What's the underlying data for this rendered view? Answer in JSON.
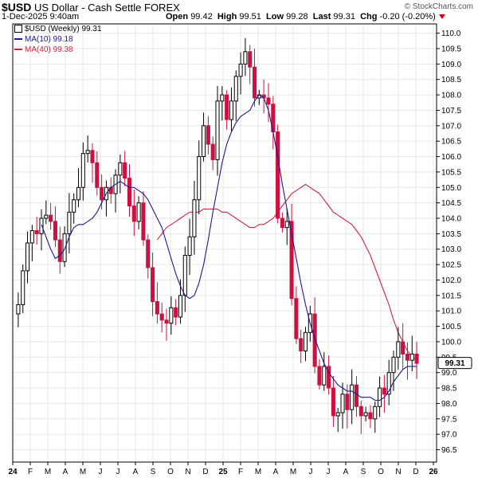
{
  "header": {
    "symbol": "$USD",
    "name": "US Dollar - Cash Settle",
    "exchange": "FOREX",
    "datetime": "1-Dec-2025 9:40am",
    "brand": "© StockCharts.com",
    "quote": {
      "open_label": "Open",
      "open": "99.42",
      "high_label": "High",
      "high": "99.51",
      "low_label": "Low",
      "low": "99.28",
      "last_label": "Last",
      "last": "99.31",
      "chg_label": "Chg",
      "chg": "-0.20 (-0.20%)"
    }
  },
  "legend": {
    "price": "$USD (Weekly) 99.31",
    "ma10": "MA(10) 99.18",
    "ma40": "MA(40) 99.38"
  },
  "colors": {
    "up": "#000000",
    "down": "#cc1140",
    "ma10": "#1a1a8c",
    "ma40": "#d0243c",
    "grid": "#e6e6e6"
  },
  "chart_data": {
    "type": "candlestick",
    "timeframe": "weekly",
    "ylim": [
      96.1,
      110.3
    ],
    "y_ticks": [
      "96.5",
      "97.0",
      "97.5",
      "98.0",
      "98.5",
      "99.0",
      "99.5",
      "100.0",
      "100.5",
      "101.0",
      "101.5",
      "102.0",
      "102.5",
      "103.0",
      "103.5",
      "104.0",
      "104.5",
      "105.0",
      "105.5",
      "106.0",
      "106.5",
      "107.0",
      "107.5",
      "108.0",
      "108.5",
      "109.0",
      "109.5",
      "110.0"
    ],
    "x_ticks": [
      "24",
      "F",
      "M",
      "A",
      "M",
      "J",
      "J",
      "A",
      "S",
      "O",
      "N",
      "D",
      "25",
      "F",
      "M",
      "A",
      "M",
      "J",
      "J",
      "A",
      "S",
      "O",
      "N",
      "D",
      "26"
    ],
    "last_price_label": "99.31",
    "closes": [
      101.2,
      102.3,
      103.2,
      103.6,
      103.5,
      104.0,
      104.1,
      103.9,
      103.3,
      102.6,
      103.5,
      104.2,
      104.6,
      105.0,
      106.1,
      106.2,
      105.8,
      105.0,
      104.6,
      105.0,
      104.8,
      105.4,
      105.8,
      105.3,
      104.4,
      103.9,
      104.5,
      103.3,
      102.4,
      101.3,
      100.9,
      100.7,
      100.6,
      101.1,
      100.8,
      101.5,
      102.8,
      103.4,
      104.6,
      106.0,
      107.0,
      106.4,
      105.9,
      107.8,
      108.0,
      107.2,
      107.8,
      108.6,
      109.0,
      109.4,
      108.9,
      107.9,
      108.0,
      107.9,
      107.7,
      106.8,
      104.0,
      103.7,
      103.9,
      101.4,
      100.1,
      99.7,
      100.3,
      100.9,
      99.2,
      98.6,
      99.2,
      98.5,
      97.6,
      97.7,
      98.3,
      97.8,
      98.6,
      97.9,
      97.6,
      97.7,
      97.5,
      97.9,
      98.5,
      98.3,
      99.0,
      99.5,
      100.0,
      99.6,
      99.4,
      99.6,
      99.3
    ],
    "ma10": [
      103.8,
      103.4,
      103.0,
      102.7,
      102.8,
      103.0,
      103.4,
      103.7,
      103.8,
      103.8,
      103.9,
      104.0,
      104.2,
      104.5,
      104.8,
      105.0,
      105.1,
      105.2,
      105.1,
      105.0,
      105.0,
      104.9,
      104.8,
      104.6,
      104.3,
      104.0,
      103.7,
      103.2,
      102.7,
      102.2,
      101.8,
      101.5,
      101.4,
      101.5,
      101.9,
      102.5,
      103.3,
      104.2,
      105.0,
      105.8,
      106.4,
      106.8,
      107.1,
      107.3,
      107.4,
      107.5,
      107.8,
      108.0,
      107.9,
      107.5,
      106.8,
      106.0,
      105.1,
      104.3,
      103.5,
      102.7,
      101.9,
      101.2,
      100.6,
      100.1,
      99.7,
      99.3,
      99.0,
      98.8,
      98.6,
      98.5,
      98.4,
      98.4,
      98.3,
      98.2,
      98.2,
      98.2,
      98.1,
      98.1,
      98.2,
      98.4,
      98.7,
      98.9,
      99.1,
      99.2,
      99.2,
      99.2
    ],
    "ma40": [
      103.3,
      103.5,
      103.7,
      103.8,
      103.9,
      104.0,
      104.1,
      104.2,
      104.2,
      104.2,
      104.3,
      104.3,
      104.3,
      104.3,
      104.2,
      104.2,
      104.1,
      104.0,
      103.9,
      103.8,
      103.7,
      103.7,
      103.8,
      103.8,
      103.9,
      104.0,
      104.2,
      104.4,
      104.6,
      104.8,
      104.9,
      105.0,
      105.1,
      105.0,
      104.9,
      104.8,
      104.6,
      104.4,
      104.2,
      104.1,
      104.0,
      103.9,
      103.8,
      103.6,
      103.4,
      103.1,
      102.8,
      102.4,
      102.0,
      101.6,
      101.2,
      100.7,
      100.3,
      100.0,
      99.7,
      99.5,
      99.4
    ]
  }
}
